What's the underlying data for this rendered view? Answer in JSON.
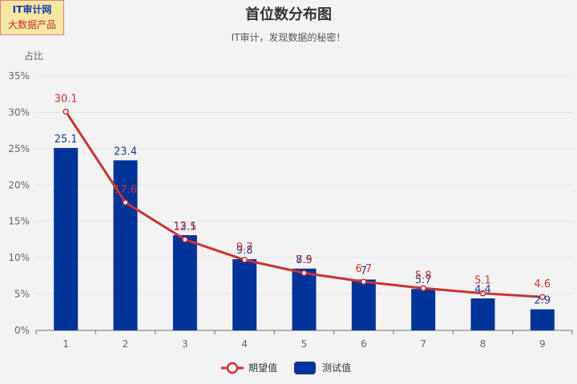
{
  "badge": {
    "line1": "IT审计网",
    "line2": "大数据产品"
  },
  "chart_data": {
    "type": "bar",
    "title": "首位数分布图",
    "subtitle": "IT审计，发现数据的秘密！",
    "ylabel": "占比",
    "xlabel": "",
    "categories": [
      "1",
      "2",
      "3",
      "4",
      "5",
      "6",
      "7",
      "8",
      "9"
    ],
    "ylim": [
      0,
      35
    ],
    "yticks": [
      "0%",
      "5%",
      "10%",
      "15%",
      "20%",
      "25%",
      "30%",
      "35%"
    ],
    "series": [
      {
        "name": "测试值",
        "type": "bar",
        "color": "#003399",
        "values": [
          25.1,
          23.4,
          13.1,
          9.8,
          8.5,
          7.0,
          5.7,
          4.4,
          2.9
        ]
      },
      {
        "name": "期望值",
        "type": "line",
        "color": "#cc3333",
        "values": [
          30.1,
          17.6,
          12.5,
          9.7,
          7.9,
          6.7,
          5.8,
          5.1,
          4.6
        ]
      }
    ],
    "legend": [
      {
        "name": "期望值",
        "color": "#cc3333",
        "kind": "line"
      },
      {
        "name": "测试值",
        "color": "#003399",
        "kind": "bar"
      }
    ]
  }
}
